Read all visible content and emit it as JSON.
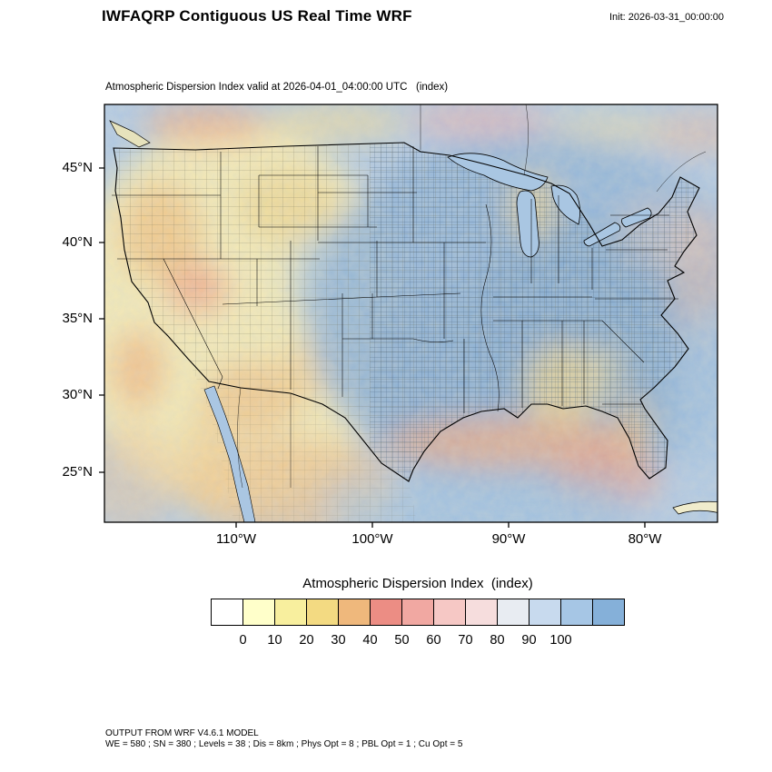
{
  "header": {
    "title": "IWFAQRP Contiguous US Real Time WRF",
    "init_label": "Init: 2026-03-31_00:00:00"
  },
  "map": {
    "subtitle": "Atmospheric Dispersion Index valid at 2026-04-01_04:00:00 UTC   (index)",
    "lat_ticks": [
      "45°N",
      "40°N",
      "35°N",
      "30°N",
      "25°N"
    ],
    "lon_ticks": [
      "110°W",
      "100°W",
      "90°W",
      "80°W"
    ]
  },
  "colorbar": {
    "title": "Atmospheric Dispersion Index  (index)",
    "tick_labels": [
      "0",
      "10",
      "20",
      "30",
      "40",
      "50",
      "60",
      "70",
      "80",
      "90",
      "100"
    ],
    "colors": [
      "#ffffff",
      "#ffffca",
      "#f8ef9e",
      "#f3da82",
      "#efb87c",
      "#ec8d84",
      "#f1a8a2",
      "#f6c8c5",
      "#f6dddd",
      "#e8ecf2",
      "#c8daee",
      "#a6c6e5",
      "#85b0d9"
    ]
  },
  "footer": {
    "line1": "OUTPUT FROM WRF V4.6.1 MODEL",
    "line2": "WE = 580 ; SN = 380 ; Levels = 38 ; Dis = 8km ; Phys Opt = 8 ; PBL Opt = 1 ; Cu Opt = 5"
  },
  "chart_data": {
    "type": "heatmap",
    "title": "IWFAQRP Contiguous US Real Time WRF",
    "subtitle": "Atmospheric Dispersion Index valid at 2026-04-01_04:00:00 UTC   (index)",
    "init_time": "2026-03-31_00:00:00",
    "colorbar_title": "Atmospheric Dispersion Index  (index)",
    "scale_ticks": [
      0,
      10,
      20,
      30,
      40,
      50,
      60,
      70,
      80,
      90,
      100
    ],
    "x_axis": {
      "ticks": [
        "110°W",
        "100°W",
        "90°W",
        "80°W"
      ]
    },
    "y_axis": {
      "ticks": [
        "45°N",
        "40°N",
        "35°N",
        "30°N",
        "25°N"
      ]
    },
    "field_summary": "Low ADI (white/yellow/orange, 0-40) over western US, Canada border strip, Gulf coast band, Florida and Mexico; high ADI (blue, 70-100) over central and eastern US and offshore waters"
  }
}
